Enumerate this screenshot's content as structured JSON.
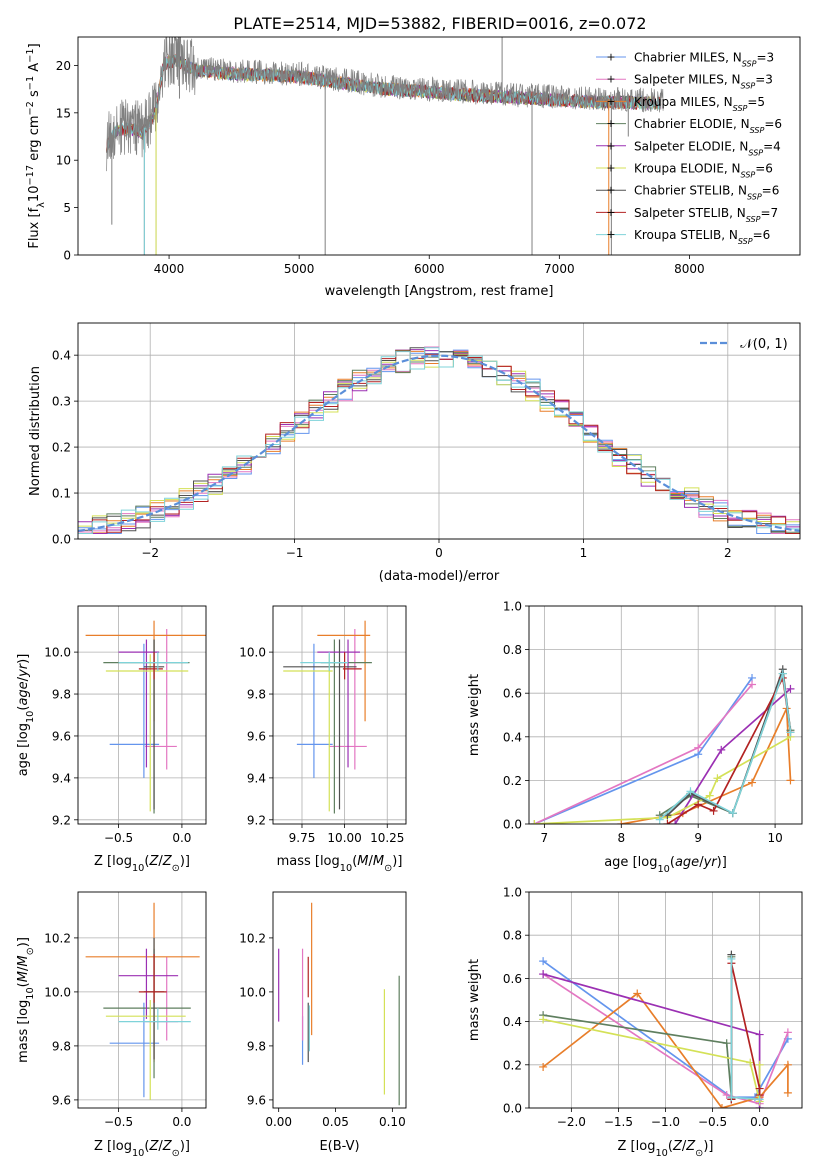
{
  "figure_title": "PLATE=2514, MJD=53882, FIBERID=0016, z=0.072",
  "series_colors": [
    "#6495ED",
    "#E377C2",
    "#E87E2A",
    "#5F7F5F",
    "#9B30B3",
    "#D4E157",
    "#505050",
    "#B22222",
    "#7FD3D9"
  ],
  "chart_data": [
    {
      "id": "spectrum",
      "type": "line",
      "xlabel": "wavelength [Angstrom, rest frame]",
      "ylabel": "Flux [fλ10⁻¹⁷ erg cm⁻² s⁻¹ A⁻¹]",
      "xlim": [
        3300,
        8850
      ],
      "ylim": [
        0,
        23
      ],
      "xticks": [
        4000,
        5000,
        6000,
        7000,
        8000
      ],
      "yticks": [
        0,
        5,
        10,
        15,
        20
      ],
      "grid": false,
      "legend_position": "top-right",
      "observed_color": "#808080",
      "observed_anchors": [
        [
          3520,
          11.8
        ],
        [
          3600,
          13.5
        ],
        [
          3700,
          13.6
        ],
        [
          3800,
          13.2
        ],
        [
          3900,
          15.5
        ],
        [
          3960,
          20.5
        ],
        [
          4050,
          20.8
        ],
        [
          4200,
          19.8
        ],
        [
          4400,
          19.5
        ],
        [
          4700,
          19.3
        ],
        [
          5000,
          19.1
        ],
        [
          5300,
          18.5
        ],
        [
          5600,
          17.9
        ],
        [
          6000,
          17.5
        ],
        [
          6400,
          17.1
        ],
        [
          6800,
          16.8
        ],
        [
          7200,
          16.5
        ],
        [
          7500,
          16.4
        ],
        [
          7800,
          16.3
        ]
      ],
      "observed_spikes": [
        [
          3560,
          3.2
        ],
        [
          3740,
          11.0
        ],
        [
          3810,
          0
        ],
        [
          3900,
          0
        ],
        [
          4080,
          16.5
        ],
        [
          5200,
          0
        ],
        [
          6560,
          24.0
        ],
        [
          6790,
          0
        ],
        [
          7400,
          0
        ],
        [
          7530,
          12.5
        ]
      ],
      "series": [
        {
          "name": "Chabrier MILES, N_SSP=3"
        },
        {
          "name": "Salpeter MILES, N_SSP=3"
        },
        {
          "name": "Kroupa MILES, N_SSP=5"
        },
        {
          "name": "Chabrier ELODIE, N_SSP=6"
        },
        {
          "name": "Salpeter ELODIE, N_SSP=4"
        },
        {
          "name": "Kroupa ELODIE, N_SSP=6"
        },
        {
          "name": "Chabrier STELIB, N_SSP=6"
        },
        {
          "name": "Salpeter STELIB, N_SSP=7"
        },
        {
          "name": "Kroupa STELIB, N_SSP=6"
        }
      ]
    },
    {
      "id": "residuals",
      "type": "line",
      "xlabel": "(data-model)/error",
      "ylabel": "Normed distribution",
      "xlim": [
        -2.5,
        2.5
      ],
      "ylim": [
        0,
        0.47
      ],
      "xticks": [
        -2,
        -1,
        0,
        1,
        2
      ],
      "yticks": [
        0.0,
        0.1,
        0.2,
        0.3,
        0.4
      ],
      "grid": true,
      "legend": "𝒩(0, 1)",
      "legend_position": "top-right",
      "bin_width": 0.1,
      "normal_color": "#5B8FD9",
      "normal_curve": {
        "mean": 0,
        "sigma": 1
      }
    },
    {
      "id": "age_vs_Z",
      "type": "scatter",
      "xlabel": "Z [log₁₀(Z/Z⊙)]",
      "ylabel": "age  [log₁₀(age/yr)]",
      "xlim": [
        -0.82,
        0.19
      ],
      "ylim": [
        9.18,
        10.22
      ],
      "xticks": [
        -0.5,
        0.0
      ],
      "yticks": [
        9.2,
        9.4,
        9.6,
        9.8,
        10.0
      ],
      "grid": true,
      "points": [
        {
          "x": -0.3,
          "y": 9.56,
          "xerr": [
            0.27,
            0.12
          ],
          "yerr": [
            0.16,
            0.48
          ]
        },
        {
          "x": -0.12,
          "y": 9.55,
          "xerr": [
            0.17,
            0.08
          ],
          "yerr": [
            0.11,
            0.56
          ]
        },
        {
          "x": -0.22,
          "y": 10.08,
          "xerr": [
            0.54,
            0.41
          ],
          "yerr": [
            0.41,
            0.07
          ]
        },
        {
          "x": -0.22,
          "y": 9.95,
          "xerr": [
            0.4,
            0.28
          ],
          "yerr": [
            0.72,
            0.11
          ]
        },
        {
          "x": -0.28,
          "y": 10.0,
          "xerr": [
            0.22,
            0.1
          ],
          "yerr": [
            0.55,
            0.06
          ]
        },
        {
          "x": -0.25,
          "y": 9.91,
          "xerr": [
            0.35,
            0.3
          ],
          "yerr": [
            0.67,
            0.08
          ]
        },
        {
          "x": -0.22,
          "y": 9.93,
          "xerr": [
            0.08,
            0.08
          ],
          "yerr": [
            0.68,
            0.13
          ]
        },
        {
          "x": -0.22,
          "y": 9.92,
          "xerr": [
            0.12,
            0.07
          ],
          "yerr": [
            0.05,
            0.08
          ]
        },
        {
          "x": -0.19,
          "y": 9.95,
          "xerr": [
            0.31,
            0.24
          ],
          "yerr": [
            0.04,
            0.05
          ]
        }
      ]
    },
    {
      "id": "age_vs_mass",
      "type": "scatter",
      "xlabel": "mass [log₁₀(M/M⊙)]",
      "ylabel": "",
      "xlim": [
        9.58,
        10.36
      ],
      "ylim": [
        9.18,
        10.22
      ],
      "xticks": [
        9.75,
        10.0,
        10.25
      ],
      "xticklabels": [
        "9.75",
        "10.00",
        "10.25"
      ],
      "yticks": [
        9.2,
        9.4,
        9.6,
        9.8,
        10.0
      ],
      "grid": true,
      "points": [
        {
          "x": 9.82,
          "y": 9.56,
          "xerr": [
            0.1,
            0.11
          ],
          "yerr": [
            0.16,
            0.48
          ]
        },
        {
          "x": 10.06,
          "y": 9.55,
          "xerr": [
            0.15,
            0.07
          ],
          "yerr": [
            0.11,
            0.56
          ]
        },
        {
          "x": 10.12,
          "y": 10.08,
          "xerr": [
            0.28,
            0.03
          ],
          "yerr": [
            0.41,
            0.07
          ]
        },
        {
          "x": 9.94,
          "y": 9.95,
          "xerr": [
            0.08,
            0.22
          ],
          "yerr": [
            0.72,
            0.11
          ]
        },
        {
          "x": 10.02,
          "y": 10.0,
          "xerr": [
            0.18,
            0.07
          ],
          "yerr": [
            0.55,
            0.06
          ]
        },
        {
          "x": 9.91,
          "y": 9.91,
          "xerr": [
            0.27,
            0.02
          ],
          "yerr": [
            0.67,
            0.08
          ]
        },
        {
          "x": 9.97,
          "y": 9.93,
          "xerr": [
            0.33,
            0.1
          ],
          "yerr": [
            0.68,
            0.13
          ]
        },
        {
          "x": 10.0,
          "y": 9.92,
          "xerr": [
            0.01,
            0.1
          ],
          "yerr": [
            0.05,
            0.08
          ]
        },
        {
          "x": 9.91,
          "y": 9.95,
          "xerr": [
            0.17,
            0.11
          ],
          "yerr": [
            0.04,
            0.05
          ]
        }
      ]
    },
    {
      "id": "mass_weight_vs_age",
      "type": "line",
      "xlabel": "age  [log₁₀(age/yr)]",
      "ylabel": "mass weight",
      "xlim": [
        6.8,
        10.35
      ],
      "ylim": [
        0,
        1.0
      ],
      "xticks": [
        7,
        8,
        9,
        10
      ],
      "yticks": [
        0.0,
        0.2,
        0.4,
        0.6,
        0.8,
        1.0
      ],
      "grid": true,
      "series": [
        {
          "x": [
            6.87,
            9.0,
            9.7
          ],
          "y": [
            0.0,
            0.32,
            0.67
          ]
        },
        {
          "x": [
            6.87,
            9.0,
            9.7
          ],
          "y": [
            0.0,
            0.35,
            0.64
          ]
        },
        {
          "x": [
            8.0,
            8.8,
            9.7,
            10.15,
            10.2
          ],
          "y": [
            0.0,
            0.05,
            0.19,
            0.53,
            0.2
          ]
        },
        {
          "x": [
            8.5,
            8.9,
            9.45,
            10.1,
            10.2
          ],
          "y": [
            0.04,
            0.13,
            0.05,
            0.69,
            0.43
          ]
        },
        {
          "x": [
            8.7,
            9.3,
            10.2
          ],
          "y": [
            0.0,
            0.34,
            0.62
          ]
        },
        {
          "x": [
            6.87,
            8.6,
            9.15,
            9.25,
            10.2
          ],
          "y": [
            0.0,
            0.03,
            0.13,
            0.21,
            0.4
          ]
        },
        {
          "x": [
            8.6,
            8.9,
            9.45,
            10.1,
            10.2
          ],
          "y": [
            0.04,
            0.14,
            0.05,
            0.71,
            0.42
          ]
        },
        {
          "x": [
            8.6,
            9.0,
            9.2,
            10.1,
            10.2
          ],
          "y": [
            0.0,
            0.09,
            0.06,
            0.67,
            0.42
          ]
        },
        {
          "x": [
            8.5,
            8.9,
            9.45,
            10.1,
            10.2
          ],
          "y": [
            0.02,
            0.15,
            0.05,
            0.69,
            0.42
          ]
        }
      ]
    },
    {
      "id": "mass_vs_Z",
      "type": "scatter",
      "xlabel": "Z [log₁₀(Z/Z⊙)]",
      "ylabel": "mass [log₁₀(M/M⊙)]",
      "xlim": [
        -0.82,
        0.19
      ],
      "ylim": [
        9.57,
        10.37
      ],
      "xticks": [
        -0.5,
        0.0
      ],
      "yticks": [
        9.6,
        9.8,
        10.0,
        10.2
      ],
      "grid": true,
      "points": [
        {
          "x": -0.3,
          "y": 9.81,
          "xerr": [
            0.27,
            0.12
          ],
          "yerr": [
            0.2,
            0.15
          ]
        },
        {
          "x": -0.12,
          "y": 9.89,
          "xerr": [
            0.17,
            0.09
          ],
          "yerr": [
            0.07,
            0.24
          ]
        },
        {
          "x": -0.22,
          "y": 10.13,
          "xerr": [
            0.54,
            0.36
          ],
          "yerr": [
            0.39,
            0.2
          ]
        },
        {
          "x": -0.22,
          "y": 9.94,
          "xerr": [
            0.4,
            0.29
          ],
          "yerr": [
            0.26,
            0.22
          ]
        },
        {
          "x": -0.28,
          "y": 10.06,
          "xerr": [
            0.22,
            0.25
          ],
          "yerr": [
            0.16,
            0.1
          ]
        },
        {
          "x": -0.25,
          "y": 9.91,
          "xerr": [
            0.35,
            0.28
          ],
          "yerr": [
            0.31,
            0.06
          ]
        },
        {
          "x": -0.22,
          "y": 10.0,
          "xerr": [
            0.08,
            0.08
          ],
          "yerr": [
            0.25,
            0.2
          ]
        },
        {
          "x": -0.22,
          "y": 10.0,
          "xerr": [
            0.12,
            0.1
          ],
          "yerr": [
            0.04,
            0.14
          ]
        },
        {
          "x": -0.19,
          "y": 9.89,
          "xerr": [
            0.31,
            0.26
          ],
          "yerr": [
            0.03,
            0.05
          ]
        }
      ]
    },
    {
      "id": "mass_vs_ebv",
      "type": "scatter",
      "xlabel": "E(B-V)",
      "ylabel": "",
      "xlim": [
        -0.005,
        0.112
      ],
      "ylim": [
        9.57,
        10.37
      ],
      "xticks": [
        0.0,
        0.05,
        0.1
      ],
      "xticklabels": [
        "0.00",
        "0.05",
        "0.10"
      ],
      "yticks": [
        9.6,
        9.8,
        10.0,
        10.2
      ],
      "grid": false,
      "points": [
        {
          "x": 0.021,
          "y": 9.81,
          "xerr": [
            0,
            0
          ],
          "yerr": [
            0.08,
            0.1
          ]
        },
        {
          "x": 0.021,
          "y": 9.89,
          "xerr": [
            0,
            0
          ],
          "yerr": [
            0.07,
            0.27
          ]
        },
        {
          "x": 0.029,
          "y": 10.13,
          "xerr": [
            0,
            0
          ],
          "yerr": [
            0.29,
            0.2
          ]
        },
        {
          "x": 0.106,
          "y": 9.94,
          "xerr": [
            0,
            0
          ],
          "yerr": [
            0.36,
            0.12
          ]
        },
        {
          "x": 0.0,
          "y": 10.06,
          "xerr": [
            0,
            0
          ],
          "yerr": [
            0.17,
            0.1
          ]
        },
        {
          "x": 0.093,
          "y": 9.91,
          "xerr": [
            0,
            0
          ],
          "yerr": [
            0.29,
            0.1
          ]
        },
        {
          "x": 0.026,
          "y": 9.92,
          "xerr": [
            0,
            0
          ],
          "yerr": [
            0.18,
            0.04
          ]
        },
        {
          "x": 0.026,
          "y": 10.05,
          "xerr": [
            0,
            0
          ],
          "yerr": [
            0.07,
            0.08
          ]
        },
        {
          "x": 0.027,
          "y": 9.9,
          "xerr": [
            0,
            0
          ],
          "yerr": [
            0.12,
            0.05
          ]
        }
      ]
    },
    {
      "id": "mass_weight_vs_Z",
      "type": "line",
      "xlabel": "Z [log₁₀(Z/Z⊙)]",
      "ylabel": "mass weight",
      "xlim": [
        -2.45,
        0.45
      ],
      "ylim": [
        0,
        1.0
      ],
      "xticks": [
        -2.0,
        -1.5,
        -1.0,
        -0.5,
        0.0
      ],
      "yticks": [
        0.0,
        0.2,
        0.4,
        0.6,
        0.8,
        1.0
      ],
      "grid": true,
      "series": [
        {
          "x": [
            -2.3,
            -0.3,
            -0.05,
            0.3
          ],
          "y": [
            0.68,
            0.05,
            0.05,
            0.32
          ]
        },
        {
          "x": [
            -2.3,
            -0.35,
            0.0,
            0.3
          ],
          "y": [
            0.62,
            0.06,
            0.02,
            0.35
          ]
        },
        {
          "x": [
            -2.3,
            -1.3,
            -0.4,
            0.0,
            0.3,
            0.3
          ],
          "y": [
            0.19,
            0.53,
            0.0,
            0.05,
            0.2,
            0.07
          ]
        },
        {
          "x": [
            -2.3,
            -0.35,
            -0.3,
            -0.3
          ],
          "y": [
            0.43,
            0.3,
            0.05,
            0.7
          ]
        },
        {
          "x": [
            -2.3,
            0.0,
            0.0
          ],
          "y": [
            0.62,
            0.34,
            0.0
          ]
        },
        {
          "x": [
            -2.3,
            -0.1,
            0.0,
            0.0
          ],
          "y": [
            0.41,
            0.21,
            0.03,
            0.2
          ]
        },
        {
          "x": [
            -0.3,
            -0.3,
            -0.3
          ],
          "y": [
            0.71,
            0.04,
            0.04
          ]
        },
        {
          "x": [
            -0.3,
            -0.3,
            0.0,
            0.0
          ],
          "y": [
            0.04,
            0.67,
            0.09,
            0.06
          ]
        },
        {
          "x": [
            -0.3,
            -0.3,
            0.0
          ],
          "y": [
            0.69,
            0.05,
            0.04
          ]
        }
      ]
    }
  ]
}
